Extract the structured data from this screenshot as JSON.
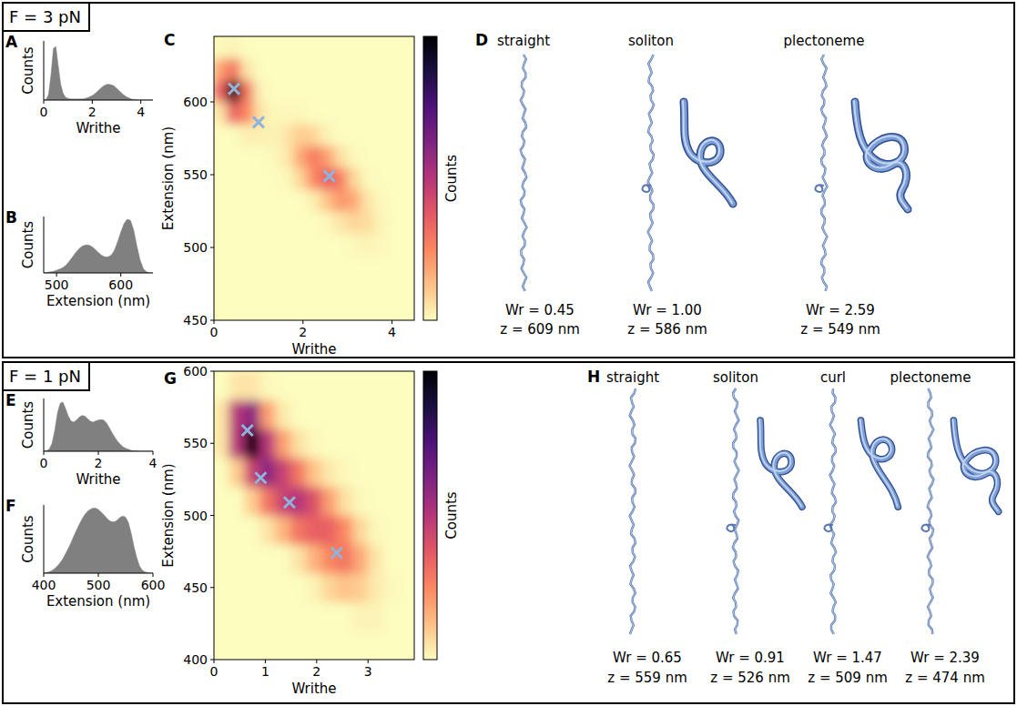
{
  "sections": [
    {
      "title": "F = 3 pN"
    },
    {
      "title": "F = 1 pN"
    }
  ],
  "chart_data": [
    {
      "panel": "A",
      "type": "area",
      "x_label": "Writhe",
      "y_label": "Counts",
      "color": "#808080",
      "tick_labels": "x",
      "x": [
        0,
        0.1,
        0.2,
        0.3,
        0.4,
        0.5,
        0.6,
        0.7,
        0.8,
        0.9,
        1.0,
        1.1,
        1.2,
        1.3,
        1.4,
        1.5,
        1.6,
        1.7,
        1.8,
        1.9,
        2.0,
        2.1,
        2.2,
        2.3,
        2.4,
        2.5,
        2.6,
        2.7,
        2.8,
        2.9,
        3.0,
        3.1,
        3.2,
        3.3,
        3.4,
        3.5,
        3.6,
        3.7,
        3.8,
        3.9,
        4.0,
        4.1,
        4.2,
        4.3,
        4.4,
        4.5
      ],
      "values": [
        0,
        0.01,
        0.1,
        0.45,
        0.92,
        0.95,
        0.6,
        0.28,
        0.12,
        0.05,
        0.03,
        0.02,
        0.02,
        0.02,
        0.02,
        0.02,
        0.02,
        0.03,
        0.04,
        0.06,
        0.08,
        0.11,
        0.15,
        0.19,
        0.23,
        0.26,
        0.28,
        0.28,
        0.27,
        0.25,
        0.21,
        0.17,
        0.13,
        0.09,
        0.06,
        0.04,
        0.02,
        0.01,
        0.01,
        0,
        0,
        0,
        0,
        0,
        0,
        0
      ],
      "xlim": [
        0,
        4.5
      ],
      "xticks": [
        0,
        2,
        4
      ],
      "ylim": [
        0,
        1.05
      ]
    },
    {
      "panel": "B",
      "type": "area",
      "x_label": "Extension (nm)",
      "y_label": "Counts",
      "color": "#808080",
      "tick_labels": "x",
      "x": [
        480,
        485,
        490,
        495,
        500,
        505,
        510,
        515,
        520,
        525,
        530,
        535,
        540,
        545,
        550,
        555,
        560,
        565,
        570,
        575,
        580,
        585,
        590,
        595,
        600,
        605,
        610,
        615,
        620,
        625,
        630,
        635,
        640,
        645,
        650
      ],
      "values": [
        0,
        0.01,
        0.02,
        0.03,
        0.05,
        0.07,
        0.1,
        0.15,
        0.22,
        0.3,
        0.38,
        0.45,
        0.5,
        0.52,
        0.52,
        0.49,
        0.44,
        0.38,
        0.33,
        0.3,
        0.3,
        0.33,
        0.42,
        0.58,
        0.76,
        0.92,
        1,
        0.98,
        0.8,
        0.5,
        0.24,
        0.08,
        0.02,
        0,
        0
      ],
      "xlim": [
        480,
        650
      ],
      "xticks": [
        500,
        600
      ],
      "ylim": [
        0,
        1.05
      ]
    },
    {
      "panel": "C",
      "type": "heatmap",
      "x_label": "Writhe",
      "y_label": "Extension (nm)",
      "xbins": [
        0,
        0.3,
        0.6,
        0.9,
        1.2,
        1.5,
        1.8,
        2.1,
        2.4,
        2.7,
        3.0,
        3.3,
        3.6,
        3.9,
        4.2,
        4.5
      ],
      "ybins": [
        450,
        465,
        480,
        495,
        510,
        525,
        540,
        555,
        570,
        585,
        600,
        615,
        630,
        645
      ],
      "z": [
        [
          0,
          0,
          0,
          0,
          0,
          0,
          0,
          0,
          0,
          0,
          0,
          0,
          0,
          0,
          0
        ],
        [
          0,
          0,
          0,
          0,
          0,
          0,
          0,
          0,
          0,
          0,
          0,
          0,
          0,
          0,
          0
        ],
        [
          0,
          0,
          0,
          0,
          0,
          0,
          0,
          0,
          0,
          0,
          0,
          0,
          0,
          0,
          0
        ],
        [
          0,
          0,
          0,
          0,
          0,
          0,
          0,
          0,
          0,
          0,
          0.01,
          0.02,
          0.01,
          0,
          0
        ],
        [
          0,
          0,
          0,
          0,
          0,
          0,
          0,
          0,
          0.01,
          0.05,
          0.08,
          0.07,
          0.02,
          0,
          0
        ],
        [
          0,
          0,
          0,
          0,
          0,
          0,
          0,
          0.03,
          0.12,
          0.22,
          0.18,
          0.05,
          0.01,
          0,
          0
        ],
        [
          0,
          0,
          0,
          0,
          0,
          0.01,
          0.08,
          0.25,
          0.35,
          0.28,
          0.08,
          0.01,
          0,
          0,
          0
        ],
        [
          0,
          0,
          0,
          0,
          0.01,
          0.04,
          0.18,
          0.28,
          0.2,
          0.06,
          0.01,
          0,
          0,
          0,
          0
        ],
        [
          0,
          0,
          0.03,
          0.03,
          0.02,
          0.05,
          0.1,
          0.08,
          0.02,
          0,
          0,
          0,
          0,
          0,
          0
        ],
        [
          0.05,
          0.35,
          0.25,
          0.05,
          0.01,
          0.01,
          0.01,
          0,
          0,
          0,
          0,
          0,
          0,
          0,
          0
        ],
        [
          0.35,
          1,
          0.3,
          0.02,
          0,
          0,
          0,
          0,
          0,
          0,
          0,
          0,
          0,
          0,
          0
        ],
        [
          0.2,
          0.3,
          0.05,
          0,
          0,
          0,
          0,
          0,
          0,
          0,
          0,
          0,
          0,
          0,
          0
        ],
        [
          0.01,
          0.02,
          0,
          0,
          0,
          0,
          0,
          0,
          0,
          0,
          0,
          0,
          0,
          0,
          0
        ]
      ],
      "xlim": [
        0,
        4.5
      ],
      "xticks": [
        0,
        2,
        4
      ],
      "ylim": [
        450,
        645
      ],
      "yticks": [
        450,
        500,
        550,
        600
      ],
      "colorbar": {
        "label": "Counts",
        "zlim": [
          0,
          1
        ]
      },
      "points": {
        "x": [
          0.45,
          1.0,
          2.59
        ],
        "y": [
          609,
          586,
          549
        ],
        "color": "#8fb3dc",
        "marker": "x"
      }
    },
    {
      "panel": "E",
      "type": "area",
      "x_label": "Writhe",
      "y_label": "Counts",
      "color": "#808080",
      "tick_labels": "x",
      "x": [
        0,
        0.1,
        0.2,
        0.3,
        0.4,
        0.5,
        0.6,
        0.7,
        0.8,
        0.9,
        1.0,
        1.1,
        1.2,
        1.3,
        1.4,
        1.5,
        1.6,
        1.7,
        1.8,
        1.9,
        2.0,
        2.1,
        2.2,
        2.3,
        2.4,
        2.5,
        2.6,
        2.7,
        2.8,
        2.9,
        3.0,
        3.1,
        3.2,
        3.3,
        3.4,
        3.5,
        3.6,
        3.7,
        3.8,
        3.9,
        4.0
      ],
      "values": [
        0,
        0.01,
        0.04,
        0.15,
        0.4,
        0.75,
        0.95,
        0.98,
        0.85,
        0.7,
        0.6,
        0.58,
        0.62,
        0.68,
        0.71,
        0.7,
        0.65,
        0.6,
        0.58,
        0.6,
        0.62,
        0.63,
        0.62,
        0.56,
        0.47,
        0.37,
        0.28,
        0.2,
        0.14,
        0.09,
        0.06,
        0.04,
        0.02,
        0.01,
        0.01,
        0,
        0,
        0,
        0,
        0,
        0
      ],
      "xlim": [
        0,
        4
      ],
      "xticks": [
        0,
        2,
        4
      ],
      "ylim": [
        0,
        1.05
      ]
    },
    {
      "panel": "F",
      "type": "area",
      "x_label": "Extension (nm)",
      "y_label": "Counts",
      "color": "#808080",
      "tick_labels": "x",
      "x": [
        400,
        405,
        410,
        415,
        420,
        425,
        430,
        435,
        440,
        445,
        450,
        455,
        460,
        465,
        470,
        475,
        480,
        485,
        490,
        495,
        500,
        505,
        510,
        515,
        520,
        525,
        530,
        535,
        540,
        545,
        550,
        555,
        560,
        565,
        570,
        575,
        580,
        585,
        590,
        595,
        600
      ],
      "values": [
        0,
        0.01,
        0.02,
        0.04,
        0.07,
        0.11,
        0.16,
        0.22,
        0.3,
        0.38,
        0.47,
        0.57,
        0.66,
        0.75,
        0.83,
        0.9,
        0.95,
        0.98,
        1,
        1,
        0.98,
        0.94,
        0.9,
        0.85,
        0.81,
        0.79,
        0.79,
        0.82,
        0.86,
        0.88,
        0.86,
        0.78,
        0.62,
        0.42,
        0.25,
        0.12,
        0.05,
        0.02,
        0.01,
        0,
        0
      ],
      "xlim": [
        400,
        600
      ],
      "xticks": [
        400,
        500,
        600
      ],
      "ylim": [
        0,
        1.05
      ]
    },
    {
      "panel": "G",
      "type": "heatmap",
      "x_label": "Writhe",
      "y_label": "Extension (nm)",
      "xbins": [
        0,
        0.3,
        0.6,
        0.9,
        1.2,
        1.5,
        1.8,
        2.1,
        2.4,
        2.7,
        3.0,
        3.3,
        3.6,
        3.9
      ],
      "ybins": [
        400,
        420,
        440,
        460,
        480,
        500,
        520,
        540,
        560,
        580,
        600
      ],
      "z": [
        [
          0,
          0,
          0,
          0,
          0,
          0,
          0,
          0,
          0,
          0,
          0,
          0,
          0
        ],
        [
          0,
          0,
          0,
          0,
          0,
          0,
          0,
          0,
          0,
          0.02,
          0.02,
          0,
          0
        ],
        [
          0,
          0,
          0,
          0,
          0,
          0,
          0.02,
          0.08,
          0.12,
          0.1,
          0.04,
          0.01,
          0
        ],
        [
          0,
          0,
          0,
          0,
          0,
          0.05,
          0.15,
          0.25,
          0.3,
          0.18,
          0.05,
          0,
          0
        ],
        [
          0,
          0,
          0,
          0.05,
          0.15,
          0.3,
          0.35,
          0.35,
          0.25,
          0.08,
          0.01,
          0,
          0
        ],
        [
          0,
          0,
          0.1,
          0.3,
          0.45,
          0.5,
          0.4,
          0.2,
          0.06,
          0.01,
          0,
          0,
          0
        ],
        [
          0,
          0.1,
          0.45,
          0.6,
          0.45,
          0.3,
          0.12,
          0.04,
          0.01,
          0,
          0,
          0,
          0
        ],
        [
          0.05,
          0.5,
          1,
          0.5,
          0.2,
          0.06,
          0.01,
          0,
          0,
          0,
          0,
          0,
          0
        ],
        [
          0.05,
          0.5,
          0.6,
          0.2,
          0.04,
          0,
          0,
          0,
          0,
          0,
          0,
          0,
          0
        ],
        [
          0,
          0.05,
          0.05,
          0.01,
          0,
          0,
          0,
          0,
          0,
          0,
          0,
          0,
          0
        ]
      ],
      "xlim": [
        0,
        3.9
      ],
      "xticks": [
        0,
        1,
        2,
        3
      ],
      "ylim": [
        400,
        600
      ],
      "yticks": [
        400,
        450,
        500,
        550,
        600
      ],
      "colorbar": {
        "label": "Counts",
        "zlim": [
          0,
          1
        ]
      },
      "points": {
        "x": [
          0.65,
          0.91,
          1.47,
          2.39
        ],
        "y": [
          559,
          526,
          509,
          474
        ],
        "color": "#8fb3dc",
        "marker": "x"
      }
    }
  ],
  "snapshots": [
    {
      "panel": "D",
      "items": [
        {
          "title": "straight",
          "writhe": "Wr = 0.45",
          "extension": "z = 609 nm"
        },
        {
          "title": "soliton",
          "writhe": "Wr = 1.00",
          "extension": "z = 586 nm"
        },
        {
          "title": "plectoneme",
          "writhe": "Wr = 2.59",
          "extension": "z = 549 nm"
        }
      ]
    },
    {
      "panel": "H",
      "items": [
        {
          "title": "straight",
          "writhe": "Wr = 0.65",
          "extension": "z = 559 nm"
        },
        {
          "title": "soliton",
          "writhe": "Wr = 0.91",
          "extension": "z = 526 nm"
        },
        {
          "title": "curl",
          "writhe": "Wr = 1.47",
          "extension": "z = 509 nm"
        },
        {
          "title": "plectoneme",
          "writhe": "Wr = 2.39",
          "extension": "z = 474 nm"
        }
      ]
    }
  ]
}
